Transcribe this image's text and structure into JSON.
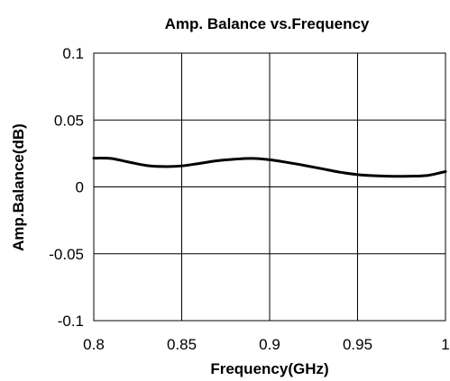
{
  "chart_data": {
    "type": "line",
    "title": "Amp. Balance vs.Frequency",
    "xlabel": "Frequency(GHz)",
    "ylabel": "Amp.Balance(dB)",
    "xlim": [
      0.8,
      1.0
    ],
    "ylim": [
      -0.1,
      0.1
    ],
    "x_ticks": [
      "0.8",
      "0.85",
      "0.9",
      "0.95",
      "1"
    ],
    "y_ticks": [
      "0.1",
      "0.05",
      "0",
      "-0.05",
      "-0.1"
    ],
    "grid": true,
    "series": [
      {
        "x": [
          0.8,
          0.81,
          0.82,
          0.83,
          0.84,
          0.85,
          0.86,
          0.87,
          0.88,
          0.89,
          0.9,
          0.91,
          0.92,
          0.93,
          0.94,
          0.95,
          0.96,
          0.97,
          0.98,
          0.99,
          1.0
        ],
        "values": [
          0.0215,
          0.0212,
          0.0185,
          0.016,
          0.0152,
          0.0157,
          0.0175,
          0.0195,
          0.0207,
          0.0213,
          0.0203,
          0.0183,
          0.016,
          0.0135,
          0.011,
          0.0092,
          0.0083,
          0.0079,
          0.008,
          0.0086,
          0.0115
        ],
        "color": "#000000"
      }
    ]
  }
}
